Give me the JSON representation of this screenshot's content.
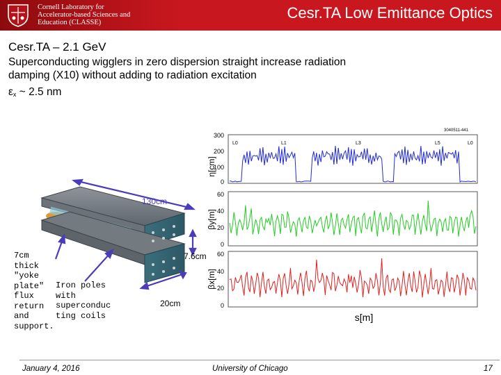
{
  "header": {
    "org_line1": "Cornell Laboratory for",
    "org_line2": "Accelerator-based Sciences and",
    "org_line3": "Education (CLASSE)",
    "title": "Cesr.TA Low Emittance Optics"
  },
  "content": {
    "subtitle": "Cesr.TA – 2.1 GeV",
    "body": "Superconducting wigglers in zero dispersion straight increase radiation damping (X10) without adding to radiation excitation",
    "formula_symbol": "ε",
    "formula_sub": "x",
    "formula_rest": " ~  2.5 nm"
  },
  "wiggler": {
    "length_label": "130cm",
    "gap_label": "7.6cm",
    "width_label": "20cm",
    "yoke_note": [
      "7cm",
      "thick",
      "\"yoke",
      "plate\"",
      "flux",
      "return",
      "and",
      "support."
    ],
    "coil_note": [
      "Iron poles",
      "with",
      "superconduc",
      "ting coils"
    ]
  },
  "plots": {
    "id_label": "3040511-441",
    "xlabel": "s[m]",
    "panels": [
      {
        "ylabel": "η[cm]",
        "ticks": [
          "300",
          "200",
          "100",
          "0"
        ],
        "color": "#1f2ad6",
        "markers": [
          "L0",
          "L1",
          "L3",
          "L5",
          "L0"
        ]
      },
      {
        "ylabel": "βy[m]",
        "ticks": [
          "60",
          "40",
          "20",
          "0"
        ],
        "color": "#22cc22",
        "markers": []
      },
      {
        "ylabel": "βx[m]",
        "ticks": [
          "60",
          "40",
          "20",
          "0"
        ],
        "color": "#e0201f",
        "markers": []
      }
    ]
  },
  "footer": {
    "date": "January 4, 2016",
    "university": "University of Chicago",
    "page": "17"
  }
}
